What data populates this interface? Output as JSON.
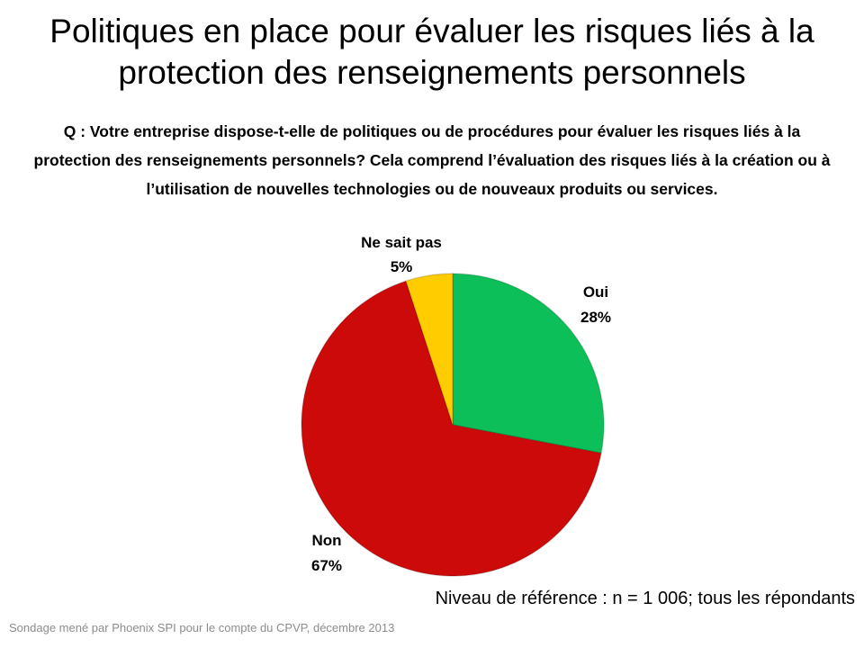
{
  "title": "Politiques en place pour évaluer les risques liés à la protection des renseignements personnels",
  "question": "Q : Votre entreprise dispose-t-elle de politiques ou de procédures pour évaluer les risques liés à la protection des renseignements personnels? Cela comprend l’évaluation des risques liés à la création ou à l’utilisation de nouvelles technologies ou de nouveaux produits ou services.",
  "base_note": "Niveau de référence : n = 1 006; tous les répondants",
  "source": "Sondage mené par Phoenix SPI pour le compte du CPVP, décembre 2013",
  "chart_data": {
    "type": "pie",
    "start": "top, clockwise",
    "slices": [
      {
        "label": "Oui",
        "value": 28,
        "display": "28%",
        "color": "#0cbf58"
      },
      {
        "label": "Non",
        "value": 67,
        "display": "67%",
        "color": "#cc0a0a"
      },
      {
        "label": "Ne sait pas",
        "value": 5,
        "display": "5%",
        "color": "#ffcc00"
      }
    ]
  }
}
